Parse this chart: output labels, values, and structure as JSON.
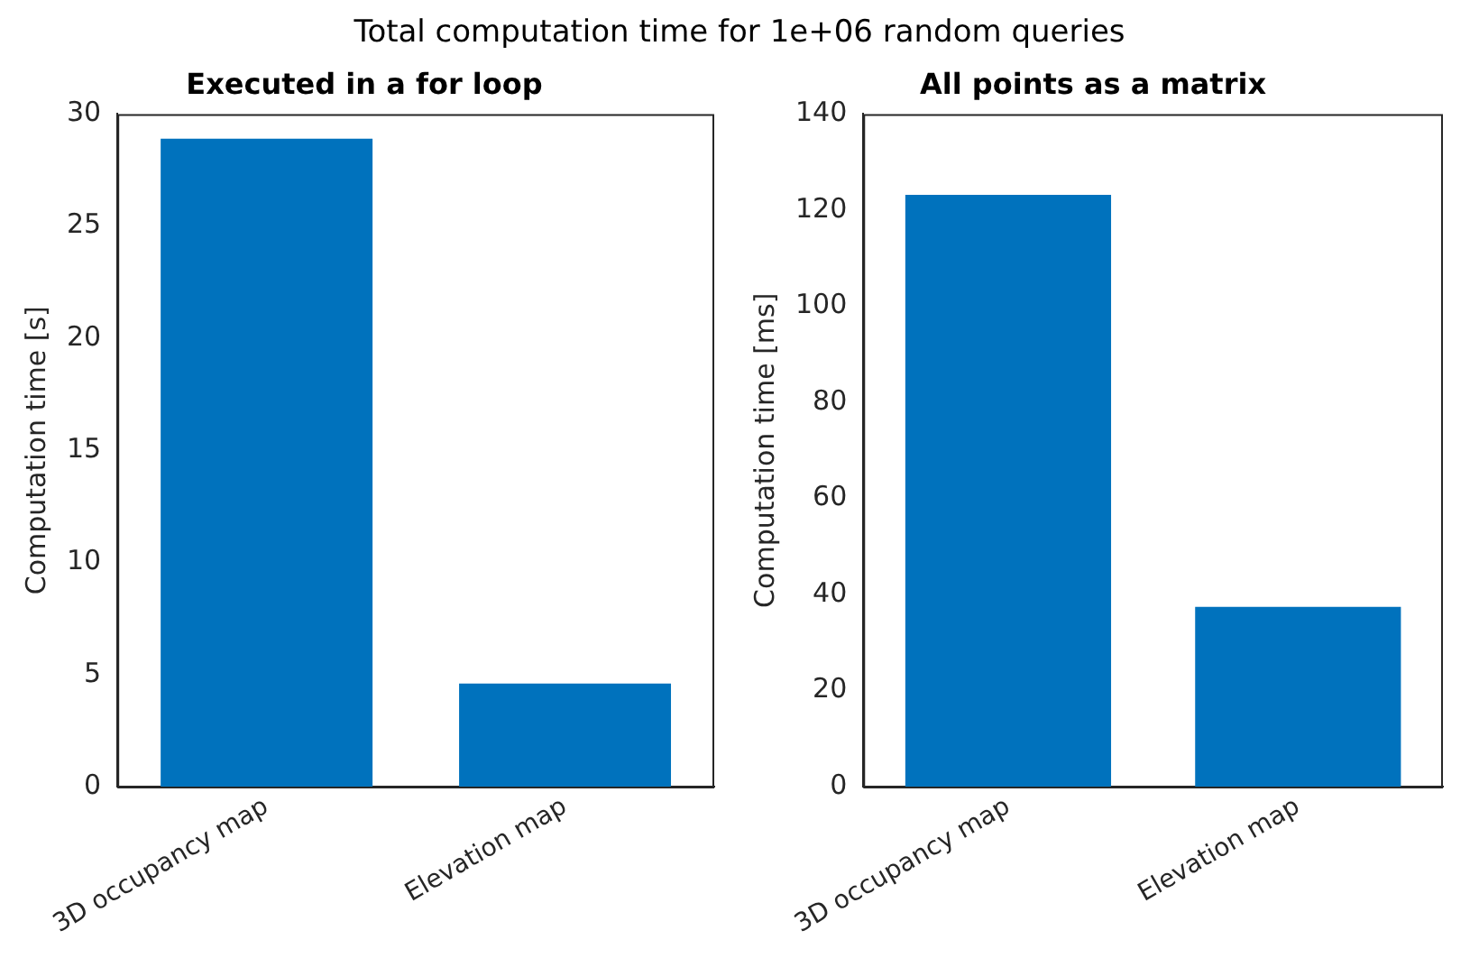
{
  "chart_data": [
    {
      "type": "other",
      "title": "Total computation time for 1e+06 random queries"
    },
    {
      "type": "bar",
      "title": "Executed in a for loop",
      "ylabel": "Computation time [s]",
      "categories": [
        "3D occupancy map",
        "Elevation map"
      ],
      "values": [
        28.9,
        4.6
      ],
      "color": "#0072bd",
      "ylim": [
        0,
        30
      ],
      "yticks": [
        0,
        5,
        10,
        15,
        20,
        25,
        30
      ],
      "grid": false
    },
    {
      "type": "bar",
      "title": "All points as a matrix",
      "ylabel": "Computation time [ms]",
      "categories": [
        "3D occupancy map",
        "Elevation map"
      ],
      "values": [
        123.2,
        37.4
      ],
      "color": "#0072bd",
      "ylim": [
        0,
        140
      ],
      "yticks": [
        0,
        20,
        40,
        60,
        80,
        100,
        120,
        140
      ],
      "grid": false
    }
  ]
}
